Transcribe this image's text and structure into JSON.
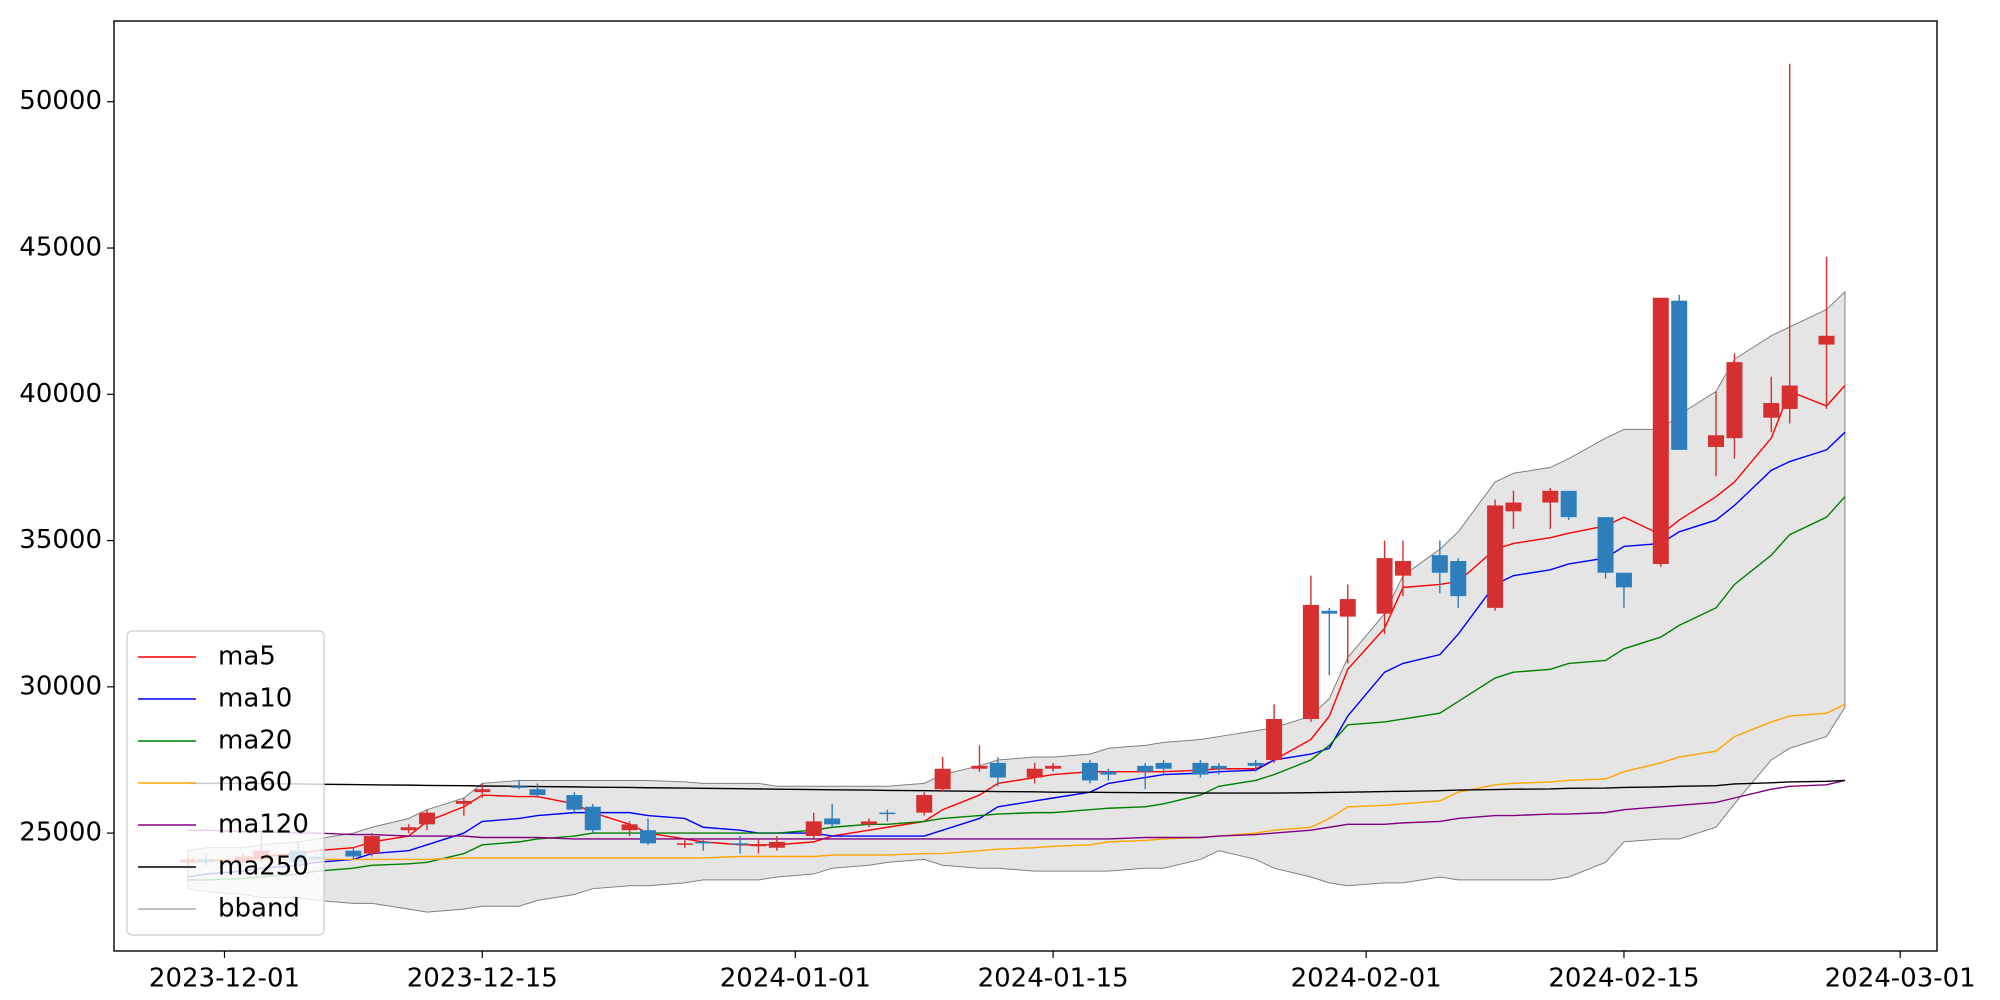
{
  "chart_data": {
    "type": "candlestick",
    "x": [
      "2023-11-29",
      "2023-11-30",
      "2023-12-02",
      "2023-12-03",
      "2023-12-05",
      "2023-12-06",
      "2023-12-08",
      "2023-12-09",
      "2023-12-11",
      "2023-12-12",
      "2023-12-14",
      "2023-12-15",
      "2023-12-17",
      "2023-12-18",
      "2023-12-20",
      "2023-12-21",
      "2023-12-23",
      "2023-12-24",
      "2023-12-26",
      "2023-12-27",
      "2023-12-29",
      "2023-12-30",
      "2023-12-31",
      "2024-01-02",
      "2024-01-03",
      "2024-01-05",
      "2024-01-06",
      "2024-01-08",
      "2024-01-09",
      "2024-01-11",
      "2024-01-12",
      "2024-01-14",
      "2024-01-15",
      "2024-01-17",
      "2024-01-18",
      "2024-01-20",
      "2024-01-21",
      "2024-01-23",
      "2024-01-24",
      "2024-01-26",
      "2024-01-27",
      "2024-01-29",
      "2024-01-30",
      "2024-01-31",
      "2024-02-02",
      "2024-02-03",
      "2024-02-05",
      "2024-02-06",
      "2024-02-08",
      "2024-02-09",
      "2024-02-11",
      "2024-02-12",
      "2024-02-14",
      "2024-02-15",
      "2024-02-17",
      "2024-02-18",
      "2024-02-20",
      "2024-02-21",
      "2024-02-23",
      "2024-02-24",
      "2024-02-26",
      "2024-02-27"
    ],
    "open": [
      24000,
      24100,
      24000,
      24100,
      24400,
      24200,
      24400,
      24300,
      25100,
      25300,
      26000,
      26400,
      26600,
      26500,
      26300,
      25900,
      25100,
      25100,
      24600,
      24700,
      24650,
      24600,
      24500,
      24900,
      25500,
      25300,
      25700,
      25700,
      26500,
      27200,
      27400,
      26900,
      27200,
      27400,
      27100,
      27300,
      27400,
      27400,
      27300,
      27400,
      27500,
      28900,
      32600,
      32400,
      32500,
      33800,
      34500,
      34300,
      32700,
      36000,
      36300,
      36700,
      35800,
      33900,
      34200,
      43200,
      38200,
      38500,
      39200,
      39500,
      41700,
      null
    ],
    "high": [
      24200,
      24300,
      24300,
      25000,
      24700,
      24300,
      24500,
      25000,
      25300,
      25800,
      26200,
      26700,
      26800,
      26700,
      26400,
      26000,
      25400,
      25500,
      24800,
      24800,
      24900,
      24800,
      24900,
      25700,
      26000,
      25500,
      25800,
      26400,
      27600,
      28000,
      27600,
      27400,
      27400,
      27500,
      27200,
      27400,
      27500,
      27500,
      27400,
      27500,
      29400,
      33800,
      32700,
      33500,
      35000,
      35000,
      35000,
      34400,
      36400,
      36700,
      36800,
      36700,
      35800,
      33900,
      43300,
      43400,
      40100,
      41400,
      40600,
      51300,
      44700,
      null
    ],
    "low": [
      23900,
      23900,
      23900,
      24000,
      23900,
      24100,
      24100,
      24200,
      25000,
      25100,
      25600,
      26200,
      26500,
      26200,
      25700,
      25000,
      24900,
      24600,
      24500,
      24400,
      24300,
      24300,
      24400,
      24800,
      25200,
      25200,
      25400,
      25600,
      26400,
      27100,
      26600,
      26700,
      27100,
      26700,
      26800,
      26500,
      27000,
      26900,
      27000,
      27100,
      27400,
      28800,
      30400,
      30800,
      31800,
      33100,
      33200,
      32700,
      32600,
      35400,
      35400,
      35700,
      33700,
      32700,
      34100,
      38100,
      37200,
      37800,
      38700,
      39000,
      39500,
      null
    ],
    "close": [
      24100,
      24000,
      24200,
      24400,
      24000,
      24100,
      24200,
      24900,
      25200,
      25700,
      26100,
      26500,
      26550,
      26300,
      25800,
      25100,
      25300,
      24650,
      24650,
      24650,
      24600,
      24600,
      24700,
      25400,
      25300,
      25400,
      25650,
      26300,
      27200,
      27300,
      26900,
      27200,
      27300,
      26800,
      27000,
      27100,
      27200,
      27000,
      27200,
      27300,
      28900,
      32800,
      32500,
      33000,
      34400,
      34300,
      33900,
      33100,
      36200,
      36300,
      36700,
      35800,
      33900,
      33400,
      43300,
      38100,
      38600,
      41100,
      39700,
      40300,
      42000,
      null
    ],
    "up_color": "#d62f2f",
    "down_color": "#2e7ebc",
    "series": [
      {
        "name": "ma5",
        "color": "#ff0000",
        "values": [
          24000,
          24050,
          24100,
          24200,
          24300,
          24400,
          24500,
          24700,
          24900,
          25400,
          25900,
          26300,
          26250,
          26250,
          26000,
          25700,
          25300,
          25000,
          24800,
          24700,
          24600,
          24600,
          24600,
          24700,
          24900,
          25100,
          25200,
          25400,
          25800,
          26300,
          26700,
          26900,
          27000,
          27100,
          27100,
          27100,
          27100,
          27150,
          27200,
          27200,
          27500,
          28200,
          29000,
          30600,
          32000,
          33400,
          33500,
          33600,
          34700,
          34900,
          35100,
          35250,
          35500,
          35800,
          35200,
          35700,
          36500,
          37000,
          38500,
          40100,
          39600,
          40300
        ]
      },
      {
        "name": "ma10",
        "color": "#0000ff",
        "values": [
          23500,
          23600,
          23700,
          23800,
          23900,
          24000,
          24100,
          24300,
          24400,
          24600,
          25000,
          25400,
          25500,
          25600,
          25700,
          25700,
          25700,
          25600,
          25500,
          25200,
          25100,
          25000,
          25000,
          25000,
          24900,
          24900,
          24900,
          24900,
          25100,
          25500,
          25900,
          26100,
          26200,
          26400,
          26700,
          26900,
          27000,
          27050,
          27100,
          27150,
          27500,
          27700,
          27900,
          29000,
          30500,
          30800,
          31100,
          31800,
          33500,
          33800,
          34000,
          34200,
          34400,
          34800,
          34900,
          35300,
          35700,
          36200,
          37400,
          37700,
          38100,
          38700
        ]
      },
      {
        "name": "ma20",
        "color": "#008000",
        "values": [
          23400,
          23400,
          23450,
          23500,
          23600,
          23700,
          23800,
          23900,
          23950,
          24000,
          24300,
          24600,
          24700,
          24800,
          24900,
          25000,
          25000,
          25000,
          25000,
          25000,
          25000,
          25000,
          25000,
          25100,
          25200,
          25300,
          25300,
          25400,
          25500,
          25600,
          25650,
          25700,
          25700,
          25800,
          25850,
          25900,
          26000,
          26300,
          26600,
          26800,
          27000,
          27500,
          28000,
          28700,
          28800,
          28900,
          29100,
          29500,
          30300,
          30500,
          30600,
          30800,
          30900,
          31300,
          31700,
          32100,
          32700,
          33500,
          34500,
          35200,
          35800,
          36500
        ]
      },
      {
        "name": "ma60",
        "color": "#ffa500",
        "values": [
          24100,
          24100,
          24100,
          24100,
          24100,
          24100,
          24100,
          24100,
          24100,
          24100,
          24150,
          24150,
          24150,
          24150,
          24150,
          24150,
          24150,
          24150,
          24150,
          24150,
          24200,
          24200,
          24200,
          24200,
          24250,
          24250,
          24250,
          24300,
          24300,
          24400,
          24450,
          24500,
          24550,
          24600,
          24700,
          24750,
          24800,
          24850,
          24900,
          25000,
          25100,
          25200,
          25500,
          25900,
          25950,
          26000,
          26100,
          26400,
          26650,
          26700,
          26750,
          26800,
          26850,
          27100,
          27400,
          27600,
          27800,
          28300,
          28800,
          29000,
          29100,
          29400
        ]
      },
      {
        "name": "ma120",
        "color": "#800080",
        "values": [
          25100,
          25100,
          25050,
          25050,
          25000,
          25000,
          24950,
          24950,
          24900,
          24900,
          24900,
          24850,
          24850,
          24850,
          24800,
          24800,
          24800,
          24800,
          24800,
          24800,
          24800,
          24800,
          24800,
          24800,
          24800,
          24800,
          24800,
          24800,
          24800,
          24800,
          24800,
          24800,
          24800,
          24800,
          24800,
          24850,
          24850,
          24850,
          24900,
          24950,
          25000,
          25100,
          25200,
          25300,
          25300,
          25350,
          25400,
          25500,
          25600,
          25600,
          25650,
          25650,
          25700,
          25800,
          25900,
          25950,
          26050,
          26200,
          26500,
          26600,
          26650,
          26800
        ]
      },
      {
        "name": "ma250",
        "color": "#000000",
        "values": [
          26700,
          26700,
          26700,
          26690,
          26680,
          26670,
          26660,
          26650,
          26640,
          26630,
          26620,
          26610,
          26600,
          26590,
          26580,
          26570,
          26560,
          26550,
          26540,
          26530,
          26520,
          26510,
          26500,
          26490,
          26480,
          26470,
          26460,
          26450,
          26440,
          26430,
          26420,
          26410,
          26400,
          26400,
          26390,
          26380,
          26380,
          26370,
          26370,
          26370,
          26370,
          26380,
          26390,
          26400,
          26420,
          26430,
          26450,
          26470,
          26490,
          26500,
          26510,
          26530,
          26540,
          26560,
          26580,
          26600,
          26620,
          26680,
          26720,
          26750,
          26770,
          26800
        ]
      }
    ],
    "band": {
      "name": "bband",
      "color": "#808080",
      "fill": "#e5e5e5",
      "upper": [
        24400,
        24500,
        24500,
        24600,
        24700,
        24800,
        25000,
        25200,
        25500,
        25800,
        26200,
        26700,
        26800,
        26800,
        26800,
        26800,
        26800,
        26800,
        26750,
        26700,
        26700,
        26700,
        26600,
        26600,
        26600,
        26600,
        26600,
        26700,
        27000,
        27300,
        27500,
        27600,
        27600,
        27700,
        27900,
        28000,
        28100,
        28200,
        28300,
        28500,
        28600,
        29000,
        29600,
        31000,
        32500,
        33800,
        34700,
        35300,
        37000,
        37300,
        37500,
        37800,
        38500,
        38800,
        38800,
        39300,
        40100,
        41200,
        42000,
        42300,
        42900,
        43500
      ],
      "lower": [
        23100,
        23000,
        22900,
        22800,
        22800,
        22700,
        22600,
        22600,
        22400,
        22300,
        22400,
        22500,
        22500,
        22700,
        22900,
        23100,
        23200,
        23200,
        23300,
        23400,
        23400,
        23400,
        23500,
        23600,
        23800,
        23900,
        24000,
        24100,
        23900,
        23800,
        23800,
        23700,
        23700,
        23700,
        23700,
        23800,
        23800,
        24100,
        24400,
        24100,
        23800,
        23500,
        23300,
        23200,
        23300,
        23300,
        23500,
        23400,
        23400,
        23400,
        23400,
        23500,
        24000,
        24700,
        24800,
        24800,
        25200,
        26000,
        27500,
        27900,
        28300,
        29300
      ]
    },
    "xlim": [
      "2023-11-25",
      "2024-03-03"
    ],
    "xticks": [
      "2023-12-01",
      "2023-12-15",
      "2024-01-01",
      "2024-01-15",
      "2024-02-01",
      "2024-02-15",
      "2024-03-01"
    ],
    "ylim": [
      20970,
      52760
    ],
    "yticks": [
      25000,
      30000,
      35000,
      40000,
      45000,
      50000
    ],
    "legend": "lower left"
  }
}
